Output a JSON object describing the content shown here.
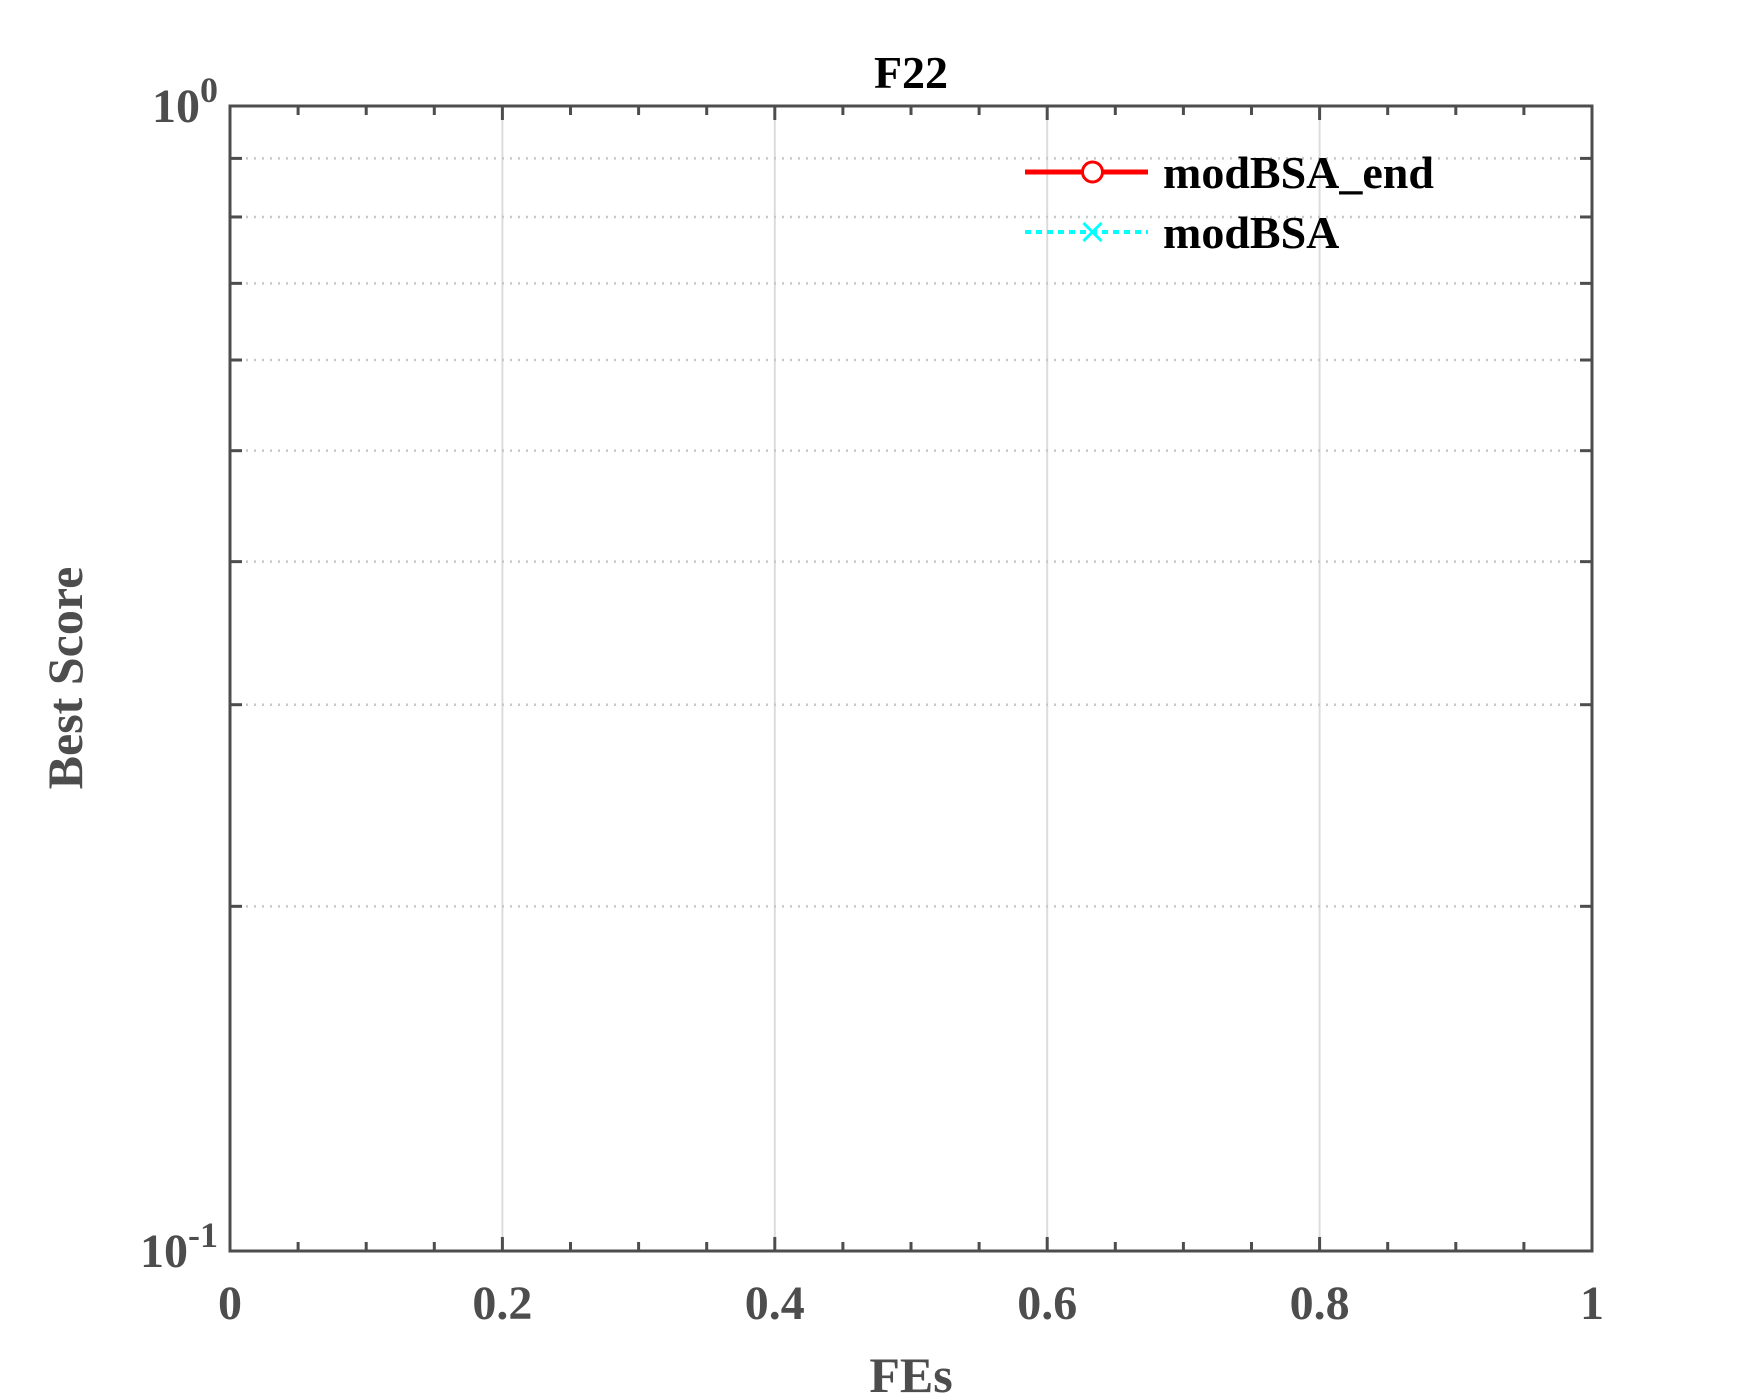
{
  "chart_data": {
    "type": "line",
    "title": "F22",
    "xlabel": "FEs",
    "ylabel": "Best Score",
    "xlim": [
      0,
      1
    ],
    "ylim": [
      0.1,
      1
    ],
    "y_scale": "log",
    "grid": true,
    "legend_position": "top-right",
    "x_ticks": [
      {
        "value": 0,
        "label": "0"
      },
      {
        "value": 0.2,
        "label": "0.2"
      },
      {
        "value": 0.4,
        "label": "0.4"
      },
      {
        "value": 0.6,
        "label": "0.6"
      },
      {
        "value": 0.8,
        "label": "0.8"
      },
      {
        "value": 1,
        "label": "1"
      }
    ],
    "y_ticks": [
      {
        "value": 0.1,
        "base": "10",
        "exp": "-1"
      },
      {
        "value": 1,
        "base": "10",
        "exp": "0"
      }
    ],
    "y_minor_ticks": [
      0.2,
      0.3,
      0.4,
      0.5,
      0.6,
      0.7,
      0.8,
      0.9
    ],
    "series": [
      {
        "name": "modBSA_end",
        "color": "#ff0000",
        "line_style": "solid",
        "marker": "circle",
        "x": [],
        "y": []
      },
      {
        "name": "modBSA",
        "color": "#00ffff",
        "line_style": "dotted",
        "marker": "x",
        "x": [],
        "y": []
      }
    ]
  }
}
